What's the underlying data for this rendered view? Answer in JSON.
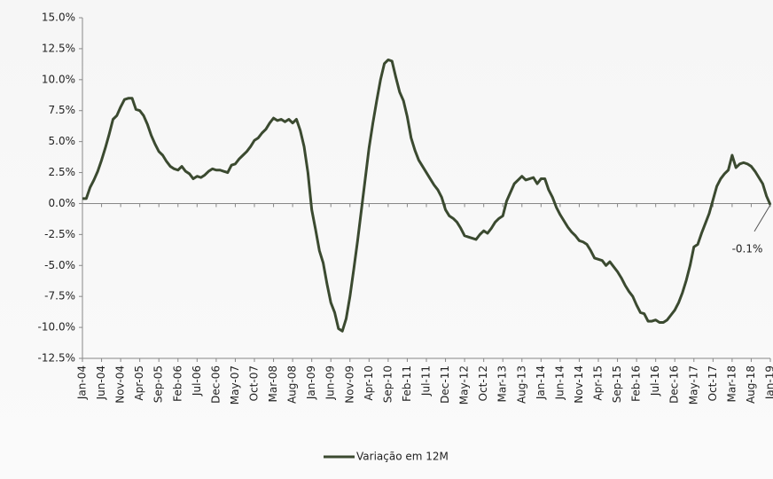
{
  "chart_data": {
    "type": "line",
    "categories": [
      "Jan-04",
      null,
      null,
      null,
      null,
      "Jun-04",
      null,
      null,
      null,
      null,
      "Nov-04",
      null,
      null,
      null,
      null,
      "Apr-05",
      null,
      null,
      null,
      null,
      "Sep-05",
      null,
      null,
      null,
      null,
      "Feb-06",
      null,
      null,
      null,
      null,
      "Jul-06",
      null,
      null,
      null,
      null,
      "Dec-06",
      null,
      null,
      null,
      null,
      "May-07",
      null,
      null,
      null,
      null,
      "Oct-07",
      null,
      null,
      null,
      null,
      "Mar-08",
      null,
      null,
      null,
      null,
      "Aug-08",
      null,
      null,
      null,
      null,
      "Jan-09",
      null,
      null,
      null,
      null,
      "Jun-09",
      null,
      null,
      null,
      null,
      "Nov-09",
      null,
      null,
      null,
      null,
      "Apr-10",
      null,
      null,
      null,
      null,
      "Sep-10",
      null,
      null,
      null,
      null,
      "Feb-11",
      null,
      null,
      null,
      null,
      "Jul-11",
      null,
      null,
      null,
      null,
      "Dec-11",
      null,
      null,
      null,
      null,
      "May-12",
      null,
      null,
      null,
      null,
      "Oct-12",
      null,
      null,
      null,
      null,
      "Mar-13",
      null,
      null,
      null,
      null,
      "Aug-13",
      null,
      null,
      null,
      null,
      "Jan-14",
      null,
      null,
      null,
      null,
      "Jun-14",
      null,
      null,
      null,
      null,
      "Nov-14",
      null,
      null,
      null,
      null,
      "Apr-15",
      null,
      null,
      null,
      null,
      "Sep-15",
      null,
      null,
      null,
      null,
      "Feb-16",
      null,
      null,
      null,
      null,
      "Jul-16",
      null,
      null,
      null,
      null,
      "Dec-16",
      null,
      null,
      null,
      null,
      "May-17",
      null,
      null,
      null,
      null,
      "Oct-17",
      null,
      null,
      null,
      null,
      "Mar-18",
      null,
      null,
      null,
      null,
      "Aug-18",
      null,
      null,
      null,
      null,
      "Jan-19"
    ],
    "series": [
      {
        "name": "Variação em 12M",
        "color": "#3b4a30",
        "values": [
          0.4,
          0.4,
          1.3,
          1.9,
          2.6,
          3.5,
          4.5,
          5.6,
          6.8,
          7.1,
          7.8,
          8.4,
          8.5,
          8.5,
          7.6,
          7.5,
          7.1,
          6.4,
          5.5,
          4.8,
          4.2,
          3.9,
          3.4,
          3.0,
          2.8,
          2.7,
          3.0,
          2.6,
          2.4,
          2.0,
          2.2,
          2.1,
          2.3,
          2.6,
          2.8,
          2.7,
          2.7,
          2.6,
          2.5,
          3.1,
          3.2,
          3.6,
          3.9,
          4.2,
          4.6,
          5.1,
          5.3,
          5.7,
          6.0,
          6.5,
          6.9,
          6.7,
          6.8,
          6.6,
          6.8,
          6.5,
          6.8,
          5.9,
          4.6,
          2.5,
          -0.5,
          -2.1,
          -3.8,
          -4.8,
          -6.5,
          -8.0,
          -8.8,
          -10.1,
          -10.3,
          -9.3,
          -7.5,
          -5.3,
          -3.0,
          -0.5,
          2.0,
          4.5,
          6.5,
          8.3,
          10.0,
          11.3,
          11.6,
          11.5,
          10.2,
          9.0,
          8.3,
          7.0,
          5.3,
          4.3,
          3.5,
          3.0,
          2.5,
          2.0,
          1.5,
          1.1,
          0.5,
          -0.5,
          -1.0,
          -1.2,
          -1.5,
          -2.0,
          -2.6,
          -2.7,
          -2.8,
          -2.9,
          -2.5,
          -2.2,
          -2.4,
          -2.0,
          -1.5,
          -1.2,
          -1.0,
          0.2,
          0.9,
          1.6,
          1.9,
          2.2,
          1.9,
          2.0,
          2.1,
          1.6,
          2.0,
          2.0,
          1.1,
          0.5,
          -0.3,
          -0.9,
          -1.4,
          -1.9,
          -2.3,
          -2.6,
          -3.0,
          -3.1,
          -3.3,
          -3.8,
          -4.4,
          -4.5,
          -4.6,
          -5.0,
          -4.7,
          -5.1,
          -5.5,
          -6.0,
          -6.6,
          -7.1,
          -7.5,
          -8.2,
          -8.8,
          -8.9,
          -9.5,
          -9.5,
          -9.4,
          -9.6,
          -9.6,
          -9.4,
          -9.0,
          -8.6,
          -8.0,
          -7.2,
          -6.2,
          -5.0,
          -3.5,
          -3.3,
          -2.4,
          -1.6,
          -0.8,
          0.3,
          1.4,
          2.0,
          2.4,
          2.7,
          3.9,
          2.9,
          3.2,
          3.3,
          3.2,
          3.0,
          2.6,
          2.1,
          1.6,
          0.6,
          -0.1
        ],
        "value_labels": [
          null,
          null,
          null,
          null,
          null,
          null,
          null,
          null,
          null,
          null,
          null,
          null,
          null,
          null,
          null,
          null,
          null,
          null,
          null,
          null,
          null,
          null,
          null,
          null,
          null,
          null,
          null,
          null,
          null,
          null,
          null,
          null,
          null,
          null,
          null,
          null,
          null,
          null,
          null,
          null,
          null,
          null,
          null,
          null,
          null,
          null,
          null,
          null,
          null,
          null,
          null,
          null,
          null,
          null,
          null,
          null,
          null,
          null,
          null,
          null,
          null,
          null,
          null,
          null,
          null,
          null,
          null,
          null,
          null,
          null,
          null,
          null,
          null,
          null,
          null,
          null,
          null,
          null,
          null,
          null,
          null,
          null,
          null,
          null,
          null,
          null,
          null,
          null,
          null,
          null,
          null,
          null,
          null,
          null,
          null,
          null,
          null,
          null,
          null,
          null,
          null,
          null,
          null,
          null,
          null,
          null,
          null,
          null,
          null,
          null,
          null,
          null,
          null,
          null,
          null,
          null,
          null,
          null,
          null,
          null,
          null,
          null,
          null,
          null,
          null,
          null,
          null,
          null,
          null,
          null,
          null,
          null,
          null,
          null,
          null,
          null,
          null,
          null,
          null,
          null,
          null,
          null,
          null,
          null,
          null,
          null,
          null,
          null,
          null,
          null,
          null,
          null,
          null,
          null,
          null,
          null,
          null,
          null,
          null,
          null,
          null,
          null,
          null,
          null,
          null,
          null,
          null,
          null,
          null,
          null,
          null,
          null,
          null,
          null,
          null,
          null,
          null,
          null,
          null,
          null,
          "-0.1%"
        ]
      }
    ],
    "ylim": [
      -12.5,
      15
    ],
    "yticks": [
      {
        "value": -12.5,
        "label": "-12.5%"
      },
      {
        "value": -10,
        "label": "-10.0%"
      },
      {
        "value": -7.5,
        "label": "-7.5%"
      },
      {
        "value": -5,
        "label": "-5.0%"
      },
      {
        "value": -2.5,
        "label": "-2.5%"
      },
      {
        "value": 0,
        "label": "0.0%"
      },
      {
        "value": 2.5,
        "label": "2.5%"
      },
      {
        "value": 5,
        "label": "5.0%"
      },
      {
        "value": 7.5,
        "label": "7.5%"
      },
      {
        "value": 10,
        "label": "10.0%"
      },
      {
        "value": 12.5,
        "label": "12.5%"
      },
      {
        "value": 15,
        "label": "15.0%"
      }
    ],
    "grid": false,
    "legend": "bottom"
  }
}
